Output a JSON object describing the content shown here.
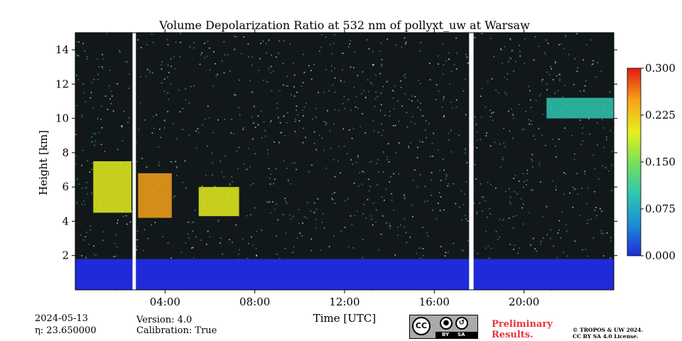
{
  "chart_data": {
    "type": "heatmap",
    "title": "Volume Depolarization Ratio at 532 nm of pollyxt_uw at Warsaw",
    "xlabel": "Time [UTC]",
    "ylabel": "Height [km]",
    "xlim_hours": [
      0,
      24
    ],
    "ylim_km": [
      0,
      15
    ],
    "x_ticks": [
      {
        "hour": 4,
        "label": "04:00"
      },
      {
        "hour": 8,
        "label": "08:00"
      },
      {
        "hour": 12,
        "label": "12:00"
      },
      {
        "hour": 16,
        "label": "16:00"
      },
      {
        "hour": 20,
        "label": "20:00"
      }
    ],
    "y_ticks": [
      {
        "km": 2,
        "label": "2"
      },
      {
        "km": 4,
        "label": "4"
      },
      {
        "km": 6,
        "label": "6"
      },
      {
        "km": 8,
        "label": "8"
      },
      {
        "km": 10,
        "label": "10"
      },
      {
        "km": 12,
        "label": "12"
      },
      {
        "km": 14,
        "label": "14"
      }
    ],
    "colorbar": {
      "min": 0.0,
      "max": 0.3,
      "ticks": [
        "0.000",
        "0.075",
        "0.150",
        "0.225",
        "0.300"
      ],
      "colors": [
        "#1f2bd8",
        "#1b8ad6",
        "#2fc7b0",
        "#79e05a",
        "#e6f01e",
        "#f7a21a",
        "#e31a13"
      ]
    },
    "data_gaps_hours": [
      [
        2.55,
        2.7
      ],
      [
        17.55,
        17.75
      ]
    ],
    "regions": [
      {
        "name": "boundary-layer",
        "t0": 0,
        "t1": 24,
        "h0": 0,
        "h1": 1.8,
        "value": 0.02
      },
      {
        "name": "dust-layer-1",
        "t0": 0.8,
        "t1": 2.5,
        "h0": 4.5,
        "h1": 7.5,
        "value": 0.2
      },
      {
        "name": "dust-layer-2",
        "t0": 2.8,
        "t1": 4.3,
        "h0": 4.2,
        "h1": 6.8,
        "value": 0.24
      },
      {
        "name": "dust-layer-3",
        "t0": 5.5,
        "t1": 7.3,
        "h0": 4.3,
        "h1": 6.0,
        "value": 0.2
      },
      {
        "name": "cirrus",
        "t0": 21,
        "t1": 24,
        "h0": 10.0,
        "h1": 11.2,
        "value": 0.1
      }
    ]
  },
  "footer": {
    "date": "2024-05-13",
    "eta": "η: 23.650000",
    "version": "Version: 4.0",
    "calibration": "Calibration: True",
    "cc_text": "CC",
    "by_text": "BY",
    "sa_text": "SA",
    "prelim_line1": "Preliminary",
    "prelim_line2": "Results.",
    "copyright_line1": "© TROPOS & UW 2024.",
    "copyright_line2": "CC BY SA 4.0 License."
  }
}
